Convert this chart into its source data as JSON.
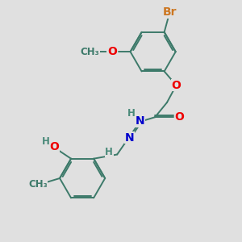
{
  "background_color": "#e0e0e0",
  "bond_color": "#3d7a6a",
  "bond_width": 1.4,
  "atom_colors": {
    "Br": "#cc7722",
    "O": "#ee0000",
    "N": "#0000cc",
    "H": "#4a8a7a",
    "C": "#3d7a6a",
    "methyl": "#3d7a6a"
  },
  "font_size": 10,
  "font_size_small": 8.5
}
